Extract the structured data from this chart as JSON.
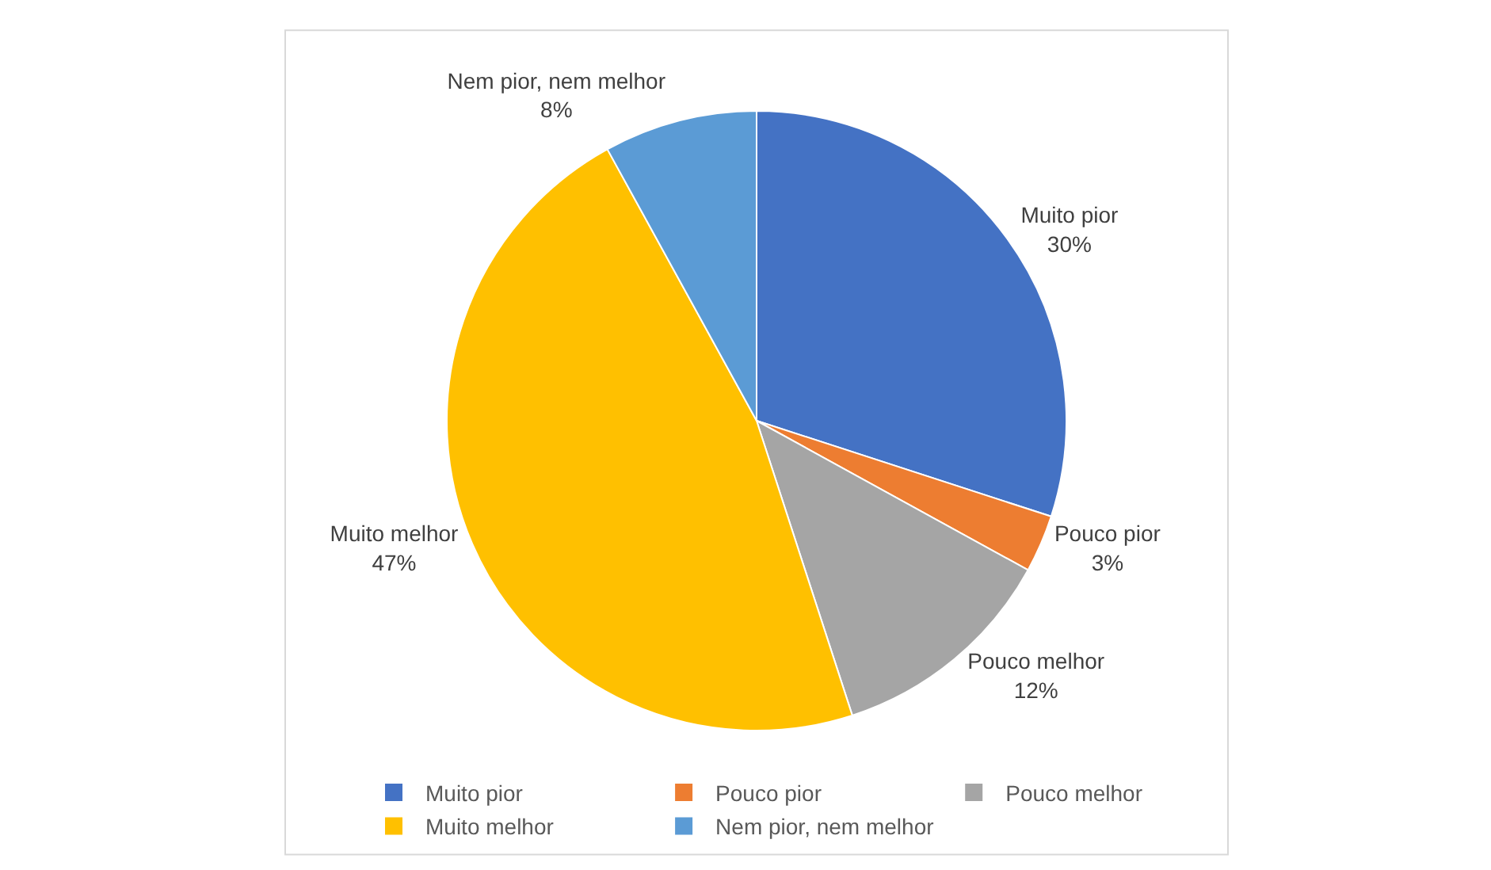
{
  "chart_data": {
    "type": "pie",
    "categories": [
      "Muito pior",
      "Pouco pior",
      "Pouco melhor",
      "Muito melhor",
      "Nem pior, nem melhor"
    ],
    "values": [
      30,
      3,
      12,
      47,
      8
    ],
    "colors": [
      "#4472c4",
      "#ed7d31",
      "#a5a5a5",
      "#ffc000",
      "#5b9bd5"
    ],
    "value_labels": [
      "30%",
      "3%",
      "12%",
      "47%",
      "8%"
    ],
    "legend": "bottom"
  }
}
